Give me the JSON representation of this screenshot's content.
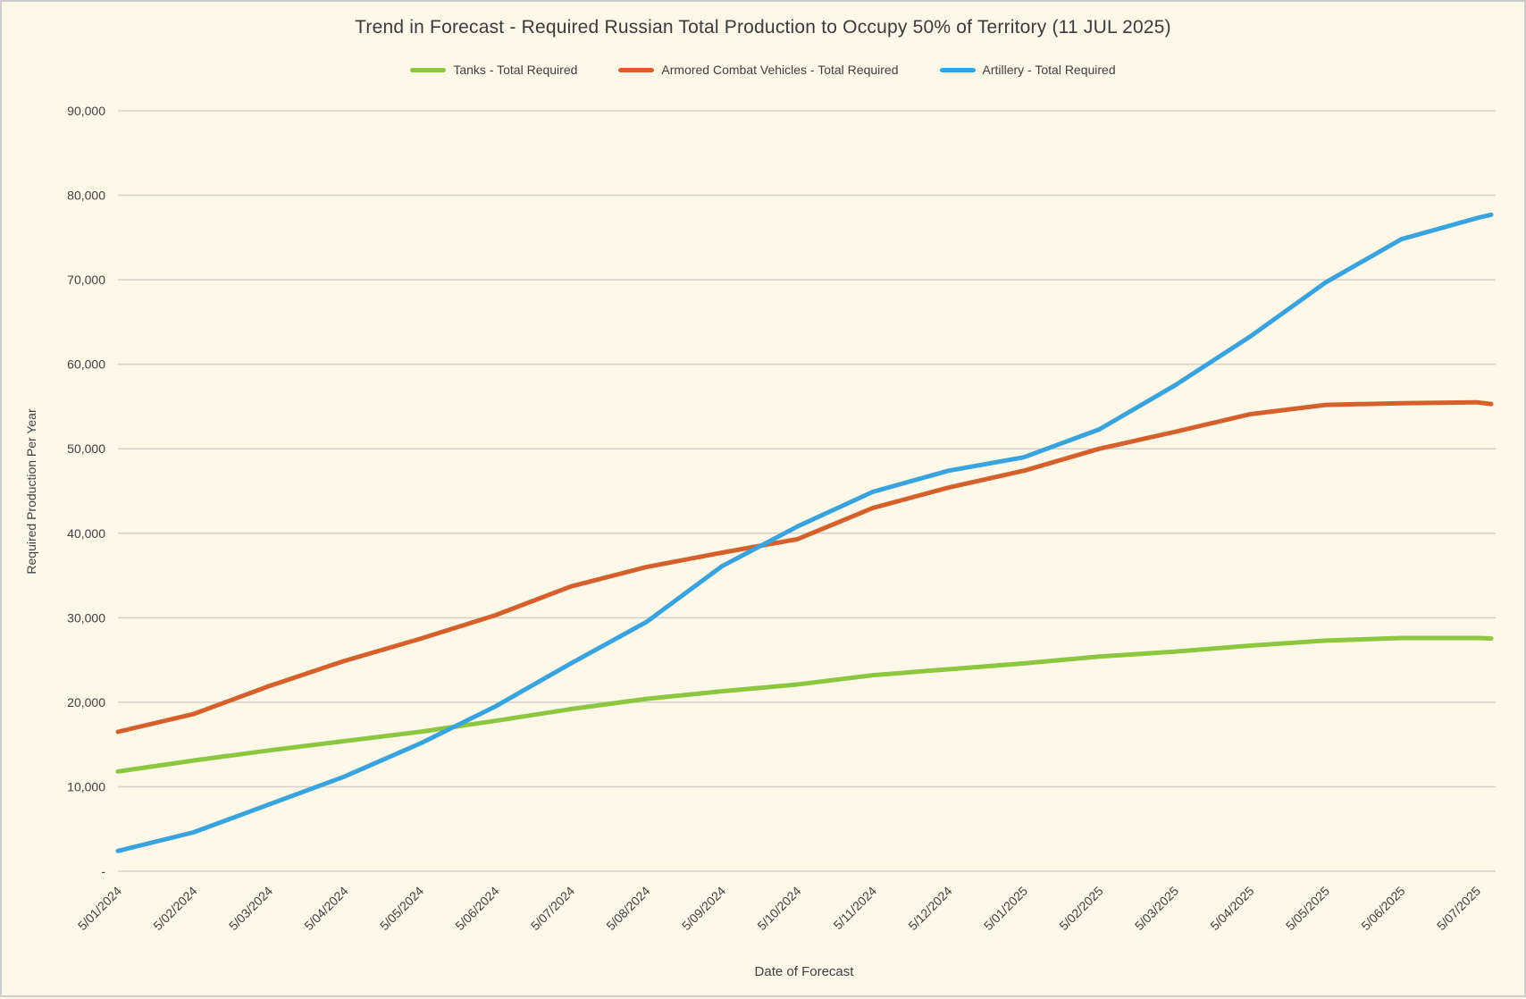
{
  "page": {
    "background": "#fdf8e8",
    "border_color": "#cfcdc9",
    "gridline_color": "#d4d1cb",
    "text_color": "#3f3f3f"
  },
  "chart_title": "Trend in Forecast - Required Russian Total Production to Occupy 50% of Territory (11 JUL 2025)",
  "chart_data": {
    "type": "line",
    "title": "Trend in Forecast - Required Russian Total Production to Occupy 50% of Territory (11 JUL 2025)",
    "xlabel": "Date of Forecast",
    "ylabel": "Required Production Per Year",
    "ylim": [
      0,
      90000
    ],
    "y_tick_step": 10000,
    "y_zero_label": "-",
    "grid": true,
    "legend_position": "top",
    "x_tick_labels": [
      "5/01/2024",
      "5/02/2024",
      "5/03/2024",
      "5/04/2024",
      "5/05/2024",
      "5/06/2024",
      "5/07/2024",
      "5/08/2024",
      "5/09/2024",
      "5/10/2024",
      "5/11/2024",
      "5/12/2024",
      "5/01/2025",
      "5/02/2025",
      "5/03/2025",
      "5/04/2025",
      "5/05/2025",
      "5/06/2025",
      "5/07/2025"
    ],
    "final_point_date": "11/07/2025",
    "series": [
      {
        "name": "Tanks - Total Required",
        "color": "#8dc63f",
        "values": [
          11800,
          13100,
          14300,
          15400,
          16500,
          17800,
          19200,
          20400,
          21300,
          22100,
          23200,
          23900,
          24600,
          25400,
          26000,
          26700,
          27300,
          27600,
          27600,
          27550
        ]
      },
      {
        "name": "Armored Combat Vehicles - Total Required",
        "color": "#d5602b",
        "values": [
          16500,
          18600,
          21900,
          24900,
          27500,
          30300,
          33700,
          36000,
          37700,
          39300,
          43000,
          45400,
          47400,
          50000,
          52000,
          54100,
          55200,
          55400,
          55500,
          55300
        ]
      },
      {
        "name": "Artillery - Total Required",
        "color": "#38a3df",
        "values": [
          2400,
          4600,
          7900,
          11200,
          15100,
          19500,
          24600,
          29500,
          36100,
          40800,
          44900,
          47400,
          49000,
          52300,
          57500,
          63300,
          69700,
          74800,
          77300,
          77700
        ]
      }
    ]
  }
}
